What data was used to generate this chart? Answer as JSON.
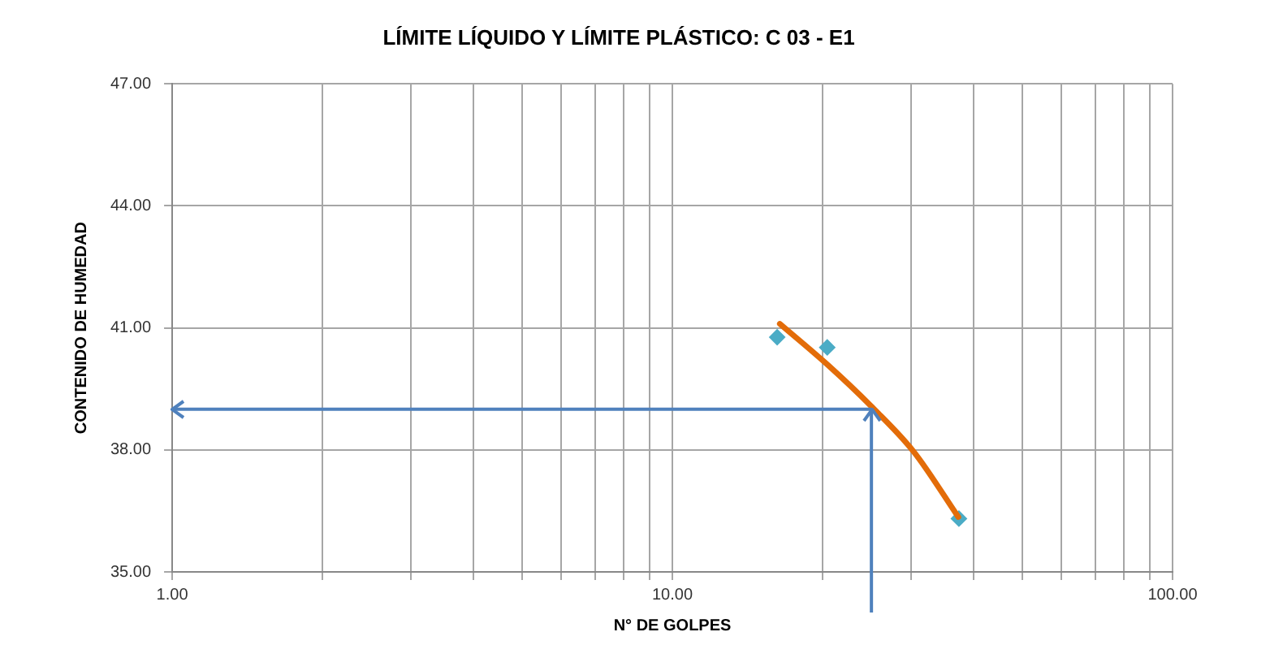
{
  "chart_data": {
    "type": "scatter",
    "title": "LÍMITE LÍQUIDO Y LÍMITE PLÁSTICO: C 03 - E1",
    "xlabel": "N° DE GOLPES",
    "ylabel": "CONTENIDO DE HUMEDAD",
    "log": "x",
    "grid": true,
    "legend": false,
    "marker": "diamond",
    "xlim": [
      1,
      100
    ],
    "xticks": [
      {
        "value": 1,
        "label": "1.00"
      },
      {
        "value": 2,
        "label": null
      },
      {
        "value": 3,
        "label": null
      },
      {
        "value": 4,
        "label": null
      },
      {
        "value": 5,
        "label": null
      },
      {
        "value": 6,
        "label": null
      },
      {
        "value": 7,
        "label": null
      },
      {
        "value": 8,
        "label": null
      },
      {
        "value": 9,
        "label": null
      },
      {
        "value": 10,
        "label": "10.00"
      },
      {
        "value": 20,
        "label": null
      },
      {
        "value": 30,
        "label": null
      },
      {
        "value": 40,
        "label": null
      },
      {
        "value": 50,
        "label": null
      },
      {
        "value": 60,
        "label": null
      },
      {
        "value": 70,
        "label": null
      },
      {
        "value": 80,
        "label": null
      },
      {
        "value": 90,
        "label": null
      },
      {
        "value": 100,
        "label": "100.00"
      }
    ],
    "ylim": [
      35,
      47
    ],
    "yticks": [
      {
        "value": 35,
        "label": "35.00"
      },
      {
        "value": 38,
        "label": "38.00"
      },
      {
        "value": 41,
        "label": "41.00"
      },
      {
        "value": 44,
        "label": "44.00"
      },
      {
        "value": 47,
        "label": "47.00"
      }
    ],
    "series": [
      {
        "type": "scatter",
        "color": "#4bacc6",
        "x": [
          16.2,
          20.4,
          37.4
        ],
        "values": [
          40.77,
          40.52,
          36.31
        ]
      },
      {
        "type": "line",
        "color": "#e36c09",
        "marker": "none",
        "x": [
          16.4,
          20.4,
          24.9,
          30.4,
          37.3
        ],
        "values": [
          41.1,
          40.1,
          39.09,
          37.95,
          36.35
        ]
      }
    ],
    "ref_lines": [
      {
        "axis": "x",
        "value": 25,
        "color": "#4f81bd"
      },
      {
        "axis": "y",
        "value": 39,
        "color": "#4f81bd"
      }
    ]
  }
}
